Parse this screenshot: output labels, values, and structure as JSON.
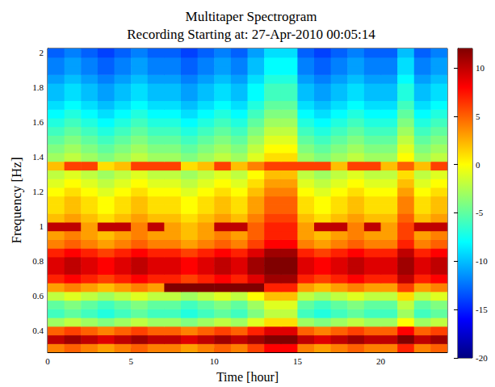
{
  "chart_data": {
    "type": "heatmap",
    "title": "Multitaper Spectrogram",
    "subtitle": "Recording Starting at: 27-Apr-2010 00:05:14",
    "x_label": "Time [hour]",
    "y_label": "Frequency [Hz]",
    "xlim": [
      0,
      24
    ],
    "xticks": [
      0,
      5,
      10,
      15,
      20
    ],
    "ylim": [
      0.275,
      2.025
    ],
    "yticks": [
      0.4,
      0.6,
      0.8,
      1,
      1.2,
      1.4,
      1.6,
      1.8,
      2
    ],
    "grid": false,
    "zlim": [
      -20,
      12
    ],
    "zticks": [
      -20,
      -15,
      -10,
      -5,
      0,
      5,
      10
    ],
    "x": [
      0.5,
      1.5,
      2.5,
      3.5,
      4.5,
      5.5,
      6.5,
      7.5,
      8.5,
      9.5,
      10.5,
      11.5,
      12.5,
      13.5,
      14.5,
      15.5,
      16.5,
      17.5,
      18.5,
      19.5,
      20.5,
      21.5,
      22.5,
      23.5
    ],
    "y": [
      0.3,
      0.35,
      0.4,
      0.45,
      0.5,
      0.55,
      0.6,
      0.65,
      0.7,
      0.75,
      0.8,
      0.85,
      0.9,
      0.95,
      1.0,
      1.05,
      1.1,
      1.15,
      1.2,
      1.25,
      1.3,
      1.35,
      1.4,
      1.45,
      1.5,
      1.55,
      1.6,
      1.65,
      1.7,
      1.75,
      1.8,
      1.85,
      1.9,
      1.95,
      2.0
    ],
    "z": [
      [
        4,
        5,
        4,
        3,
        4,
        5,
        4,
        4,
        3,
        4,
        5,
        4,
        6,
        8,
        8,
        4,
        3,
        4,
        5,
        4,
        4,
        7,
        4,
        5
      ],
      [
        10,
        11,
        10,
        9,
        10,
        11,
        10,
        10,
        9,
        10,
        11,
        10,
        11,
        12,
        12,
        10,
        9,
        10,
        11,
        10,
        10,
        12,
        10,
        11
      ],
      [
        5,
        6,
        5,
        4,
        5,
        6,
        5,
        5,
        4,
        5,
        6,
        5,
        7,
        9,
        9,
        5,
        4,
        5,
        6,
        5,
        5,
        8,
        5,
        6
      ],
      [
        -3,
        -2,
        -3,
        -4,
        -3,
        -2,
        -3,
        -3,
        -4,
        -3,
        -2,
        -3,
        -1,
        1,
        1,
        -3,
        -4,
        -3,
        -2,
        -3,
        -3,
        0,
        -3,
        -2
      ],
      [
        -6,
        -5,
        -6,
        -7,
        -6,
        -5,
        -6,
        -6,
        -7,
        -6,
        -5,
        -6,
        -4,
        -2,
        -2,
        -6,
        -7,
        -6,
        -5,
        -6,
        -6,
        -3,
        -6,
        -5
      ],
      [
        -5,
        -4,
        -5,
        -6,
        -5,
        -4,
        -5,
        -5,
        -6,
        -5,
        -4,
        -5,
        -3,
        -1,
        -1,
        -5,
        -6,
        -5,
        -4,
        -5,
        -5,
        -2,
        -5,
        -4
      ],
      [
        -2,
        -1,
        -2,
        -3,
        -2,
        -1,
        -2,
        -2,
        -3,
        -2,
        -1,
        -2,
        0,
        2,
        2,
        -2,
        -3,
        -2,
        -1,
        -2,
        -2,
        1,
        -2,
        -1
      ],
      [
        3,
        4,
        3,
        2,
        3,
        4,
        3,
        12,
        12,
        12,
        12,
        12,
        12,
        7,
        7,
        3,
        2,
        3,
        4,
        3,
        3,
        6,
        3,
        4
      ],
      [
        7,
        8,
        7,
        6,
        7,
        8,
        7,
        7,
        6,
        7,
        8,
        7,
        9,
        11,
        11,
        7,
        6,
        7,
        8,
        7,
        7,
        10,
        7,
        8
      ],
      [
        9,
        10,
        9,
        8,
        9,
        10,
        9,
        9,
        8,
        9,
        10,
        9,
        11,
        12,
        12,
        9,
        8,
        9,
        10,
        9,
        9,
        11,
        9,
        10
      ],
      [
        9,
        10,
        9,
        8,
        9,
        10,
        9,
        9,
        8,
        9,
        10,
        9,
        11,
        12,
        12,
        9,
        8,
        9,
        10,
        9,
        9,
        11,
        9,
        10
      ],
      [
        7,
        8,
        7,
        6,
        7,
        8,
        7,
        7,
        6,
        7,
        8,
        7,
        9,
        11,
        11,
        7,
        6,
        7,
        8,
        7,
        7,
        10,
        7,
        8
      ],
      [
        4,
        5,
        4,
        3,
        4,
        5,
        4,
        4,
        3,
        4,
        5,
        4,
        6,
        8,
        8,
        4,
        3,
        4,
        5,
        4,
        4,
        7,
        4,
        5
      ],
      [
        3,
        4,
        3,
        2,
        3,
        4,
        3,
        3,
        2,
        3,
        4,
        3,
        5,
        7,
        7,
        3,
        2,
        3,
        4,
        3,
        3,
        6,
        3,
        4
      ],
      [
        10,
        10,
        3,
        10,
        10,
        4,
        10,
        3,
        2,
        3,
        10,
        10,
        5,
        7,
        7,
        3,
        10,
        10,
        4,
        10,
        3,
        6,
        10,
        10
      ],
      [
        2,
        3,
        2,
        1,
        2,
        3,
        2,
        2,
        1,
        2,
        3,
        2,
        4,
        6,
        6,
        2,
        1,
        2,
        3,
        2,
        2,
        5,
        2,
        3
      ],
      [
        1,
        2,
        1,
        0,
        1,
        2,
        1,
        1,
        0,
        1,
        2,
        1,
        3,
        5,
        5,
        1,
        0,
        1,
        2,
        1,
        1,
        4,
        1,
        2
      ],
      [
        1,
        2,
        1,
        0,
        1,
        2,
        1,
        1,
        0,
        1,
        2,
        1,
        3,
        5,
        5,
        1,
        0,
        1,
        2,
        1,
        1,
        4,
        1,
        2
      ],
      [
        0,
        1,
        0,
        -1,
        0,
        1,
        0,
        0,
        -1,
        0,
        1,
        0,
        2,
        4,
        4,
        0,
        -1,
        0,
        1,
        0,
        0,
        3,
        0,
        1
      ],
      [
        -1,
        0,
        -1,
        -2,
        -1,
        0,
        -1,
        -1,
        -2,
        -1,
        0,
        -1,
        1,
        3,
        3,
        -1,
        -2,
        -1,
        0,
        -1,
        -1,
        2,
        -1,
        0
      ],
      [
        -2,
        -1,
        -2,
        -3,
        -2,
        -1,
        -2,
        -2,
        -3,
        -2,
        -1,
        -2,
        0,
        2,
        2,
        -2,
        -3,
        -2,
        -1,
        -2,
        -2,
        1,
        -2,
        -1
      ],
      [
        2,
        6,
        6,
        1,
        2,
        6,
        6,
        6,
        1,
        2,
        6,
        2,
        4,
        6,
        6,
        6,
        6,
        2,
        6,
        6,
        2,
        5,
        2,
        6
      ],
      [
        -3,
        -2,
        -3,
        -4,
        -3,
        -2,
        -3,
        -3,
        -4,
        -3,
        -2,
        -3,
        -1,
        1,
        1,
        -3,
        -4,
        -3,
        -2,
        -3,
        -3,
        0,
        -3,
        -2
      ],
      [
        -4,
        -3,
        -4,
        -5,
        -4,
        -3,
        -4,
        -4,
        -5,
        -4,
        -3,
        -4,
        -2,
        0,
        0,
        -4,
        -5,
        -4,
        -3,
        -4,
        -4,
        -1,
        -4,
        -3
      ],
      [
        -5,
        -4,
        -5,
        -6,
        -5,
        -4,
        -5,
        -5,
        -6,
        -5,
        -4,
        -5,
        -3,
        -1,
        -1,
        -5,
        -6,
        -5,
        -4,
        -5,
        -5,
        -2,
        -5,
        -4
      ],
      [
        -6,
        -5,
        -6,
        -7,
        -6,
        -5,
        -6,
        -6,
        -7,
        -6,
        -5,
        -6,
        -4,
        -2,
        -2,
        -6,
        -7,
        -6,
        -5,
        -6,
        -6,
        -3,
        -6,
        -5
      ],
      [
        -7,
        -6,
        -7,
        -8,
        -7,
        -6,
        -7,
        -7,
        -8,
        -7,
        -6,
        -7,
        -5,
        -3,
        -3,
        -7,
        -8,
        -7,
        -6,
        -7,
        -7,
        -4,
        -7,
        -6
      ],
      [
        -8,
        -7,
        -8,
        -9,
        -8,
        -7,
        -8,
        -8,
        -9,
        -8,
        -7,
        -8,
        -6,
        -4,
        -4,
        -8,
        -9,
        -8,
        -7,
        -8,
        -8,
        -5,
        -8,
        -7
      ],
      [
        -9,
        -8,
        -9,
        -10,
        -9,
        -8,
        -9,
        -9,
        -10,
        -9,
        -8,
        -9,
        -7,
        -5,
        -5,
        -9,
        -10,
        -9,
        -8,
        -9,
        -9,
        -6,
        -9,
        -8
      ],
      [
        -10,
        -9,
        -10,
        -11,
        -10,
        -9,
        -10,
        -10,
        -11,
        -10,
        -9,
        -10,
        -8,
        -6,
        -6,
        -10,
        -11,
        -10,
        -9,
        -10,
        -10,
        -7,
        -10,
        -9
      ],
      [
        -10,
        -9,
        -10,
        -11,
        -10,
        -9,
        -10,
        -10,
        -11,
        -10,
        -9,
        -10,
        -8,
        -6,
        -6,
        -10,
        -11,
        -10,
        -9,
        -10,
        -10,
        -7,
        -10,
        -9
      ],
      [
        -11,
        -10,
        -11,
        -12,
        -11,
        -10,
        -11,
        -11,
        -12,
        -11,
        -10,
        -11,
        -9,
        -7,
        -7,
        -11,
        -12,
        -11,
        -10,
        -11,
        -11,
        -8,
        -11,
        -10
      ],
      [
        -12,
        -11,
        -12,
        -13,
        -12,
        -11,
        -12,
        -12,
        -13,
        -12,
        -11,
        -12,
        -10,
        -8,
        -8,
        -12,
        -13,
        -12,
        -11,
        -12,
        -12,
        -9,
        -12,
        -11
      ],
      [
        -12,
        -11,
        -12,
        -13,
        -12,
        -11,
        -12,
        -12,
        -13,
        -12,
        -11,
        -12,
        -10,
        -8,
        -8,
        -12,
        -13,
        -12,
        -11,
        -12,
        -12,
        -9,
        -12,
        -11
      ],
      [
        -13,
        -12,
        -13,
        -14,
        -13,
        -12,
        -13,
        -13,
        -14,
        -13,
        -12,
        -13,
        -11,
        -9,
        -9,
        -13,
        -14,
        -13,
        -12,
        -13,
        -13,
        -10,
        -13,
        -12
      ]
    ]
  }
}
